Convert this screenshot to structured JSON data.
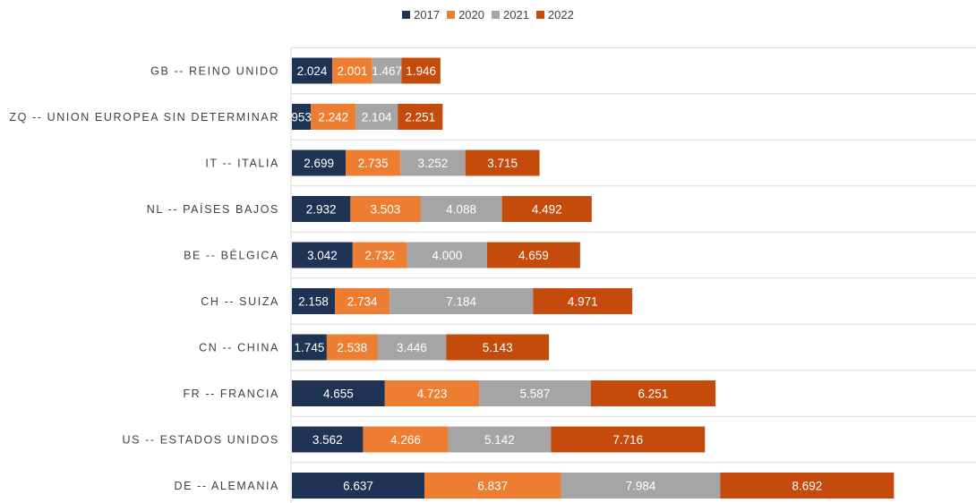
{
  "chart_data": {
    "type": "bar",
    "orientation": "horizontal",
    "stacked": true,
    "title": "",
    "xlabel": "",
    "ylabel": "",
    "legend_position": "top",
    "grid": true,
    "categories": [
      "GB -- REINO UNIDO",
      "ZQ -- UNION EUROPEA SIN DETERMINAR",
      "IT -- ITALIA",
      "NL -- PAÍSES BAJOS",
      "BE -- BÉLGICA",
      "CH -- SUIZA",
      "CN -- CHINA",
      "FR -- FRANCIA",
      "US -- ESTADOS UNIDOS",
      "DE -- ALEMANIA"
    ],
    "series": [
      {
        "name": "2017",
        "color": "#1f3354",
        "values": [
          2.024,
          0.953,
          2.699,
          2.932,
          3.042,
          2.158,
          1.745,
          4.655,
          3.562,
          6.637
        ],
        "labels": [
          "2.024",
          "953",
          "2.699",
          "2.932",
          "3.042",
          "2.158",
          "1.745",
          "4.655",
          "3.562",
          "6.637"
        ]
      },
      {
        "name": "2020",
        "color": "#ed7d31",
        "values": [
          2.001,
          2.242,
          2.735,
          3.503,
          2.732,
          2.734,
          2.538,
          4.723,
          4.266,
          6.837
        ],
        "labels": [
          "2.001",
          "2.242",
          "2.735",
          "3.503",
          "2.732",
          "2.734",
          "2.538",
          "4.723",
          "4.266",
          "6.837"
        ]
      },
      {
        "name": "2021",
        "color": "#a5a5a5",
        "values": [
          1.467,
          2.104,
          3.252,
          4.088,
          4.0,
          7.184,
          3.446,
          5.587,
          5.142,
          7.984
        ],
        "labels": [
          "1.467",
          "2.104",
          "3.252",
          "4.088",
          "4.000",
          "7.184",
          "3.446",
          "5.587",
          "5.142",
          "7.984"
        ]
      },
      {
        "name": "2022",
        "color": "#c54b0c",
        "values": [
          1.946,
          2.251,
          3.715,
          4.492,
          4.659,
          4.971,
          5.143,
          6.251,
          7.716,
          8.692
        ],
        "labels": [
          "1.946",
          "2.251",
          "3.715",
          "4.492",
          "4.659",
          "4.971",
          "5.143",
          "6.251",
          "7.716",
          "8.692"
        ]
      }
    ]
  }
}
